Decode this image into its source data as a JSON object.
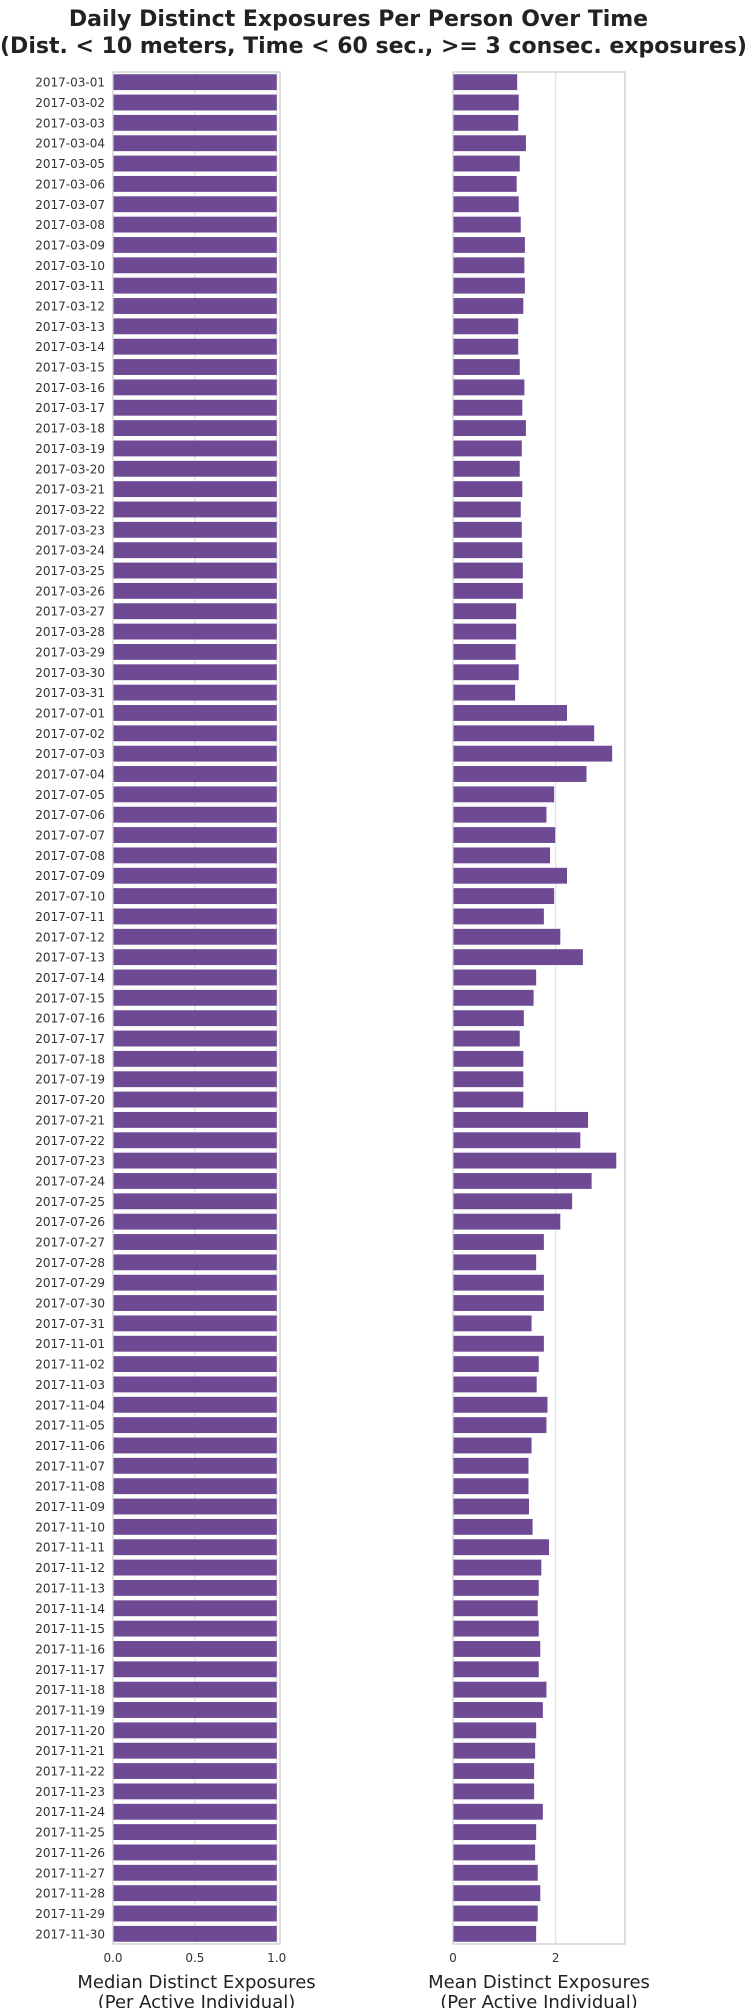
{
  "title": {
    "line1": "Daily Distinct Exposures Per Person Over Time",
    "line2": "(Dist. < 10 meters, Time < 60 sec., >= 3 consec. exposures)"
  },
  "colors": {
    "bar": "#6f4a94",
    "grid": "#dcdcdc",
    "frame": "#c8c8c8"
  },
  "chart_data": [
    {
      "type": "bar",
      "orientation": "horizontal",
      "xlabel_line1": "Median Distinct Exposures",
      "xlabel_line2": "(Per Active Individual)",
      "xlim": [
        0,
        1.02
      ],
      "xticks": [
        0,
        0.5,
        1
      ],
      "xtick_labels": [
        "0.0",
        "0.5",
        "1.0"
      ],
      "grid": true,
      "categories": [
        "2017-03-01",
        "2017-03-02",
        "2017-03-03",
        "2017-03-04",
        "2017-03-05",
        "2017-03-06",
        "2017-03-07",
        "2017-03-08",
        "2017-03-09",
        "2017-03-10",
        "2017-03-11",
        "2017-03-12",
        "2017-03-13",
        "2017-03-14",
        "2017-03-15",
        "2017-03-16",
        "2017-03-17",
        "2017-03-18",
        "2017-03-19",
        "2017-03-20",
        "2017-03-21",
        "2017-03-22",
        "2017-03-23",
        "2017-03-24",
        "2017-03-25",
        "2017-03-26",
        "2017-03-27",
        "2017-03-28",
        "2017-03-29",
        "2017-03-30",
        "2017-03-31",
        "2017-07-01",
        "2017-07-02",
        "2017-07-03",
        "2017-07-04",
        "2017-07-05",
        "2017-07-06",
        "2017-07-07",
        "2017-07-08",
        "2017-07-09",
        "2017-07-10",
        "2017-07-11",
        "2017-07-12",
        "2017-07-13",
        "2017-07-14",
        "2017-07-15",
        "2017-07-16",
        "2017-07-17",
        "2017-07-18",
        "2017-07-19",
        "2017-07-20",
        "2017-07-21",
        "2017-07-22",
        "2017-07-23",
        "2017-07-24",
        "2017-07-25",
        "2017-07-26",
        "2017-07-27",
        "2017-07-28",
        "2017-07-29",
        "2017-07-30",
        "2017-07-31",
        "2017-11-01",
        "2017-11-02",
        "2017-11-03",
        "2017-11-04",
        "2017-11-05",
        "2017-11-06",
        "2017-11-07",
        "2017-11-08",
        "2017-11-09",
        "2017-11-10",
        "2017-11-11",
        "2017-11-12",
        "2017-11-13",
        "2017-11-14",
        "2017-11-15",
        "2017-11-16",
        "2017-11-17",
        "2017-11-18",
        "2017-11-19",
        "2017-11-20",
        "2017-11-21",
        "2017-11-22",
        "2017-11-23",
        "2017-11-24",
        "2017-11-25",
        "2017-11-26",
        "2017-11-27",
        "2017-11-28",
        "2017-11-29",
        "2017-11-30"
      ],
      "values": [
        1,
        1,
        1,
        1,
        1,
        1,
        1,
        1,
        1,
        1,
        1,
        1,
        1,
        1,
        1,
        1,
        1,
        1,
        1,
        1,
        1,
        1,
        1,
        1,
        1,
        1,
        1,
        1,
        1,
        1,
        1,
        1,
        1,
        1,
        1,
        1,
        1,
        1,
        1,
        1,
        1,
        1,
        1,
        1,
        1,
        1,
        1,
        1,
        1,
        1,
        1,
        1,
        1,
        1,
        1,
        1,
        1,
        1,
        1,
        1,
        1,
        1,
        1,
        1,
        1,
        1,
        1,
        1,
        1,
        1,
        1,
        1,
        1,
        1,
        1,
        1,
        1,
        1,
        1,
        1,
        1,
        1,
        1,
        1,
        1,
        1,
        1,
        1,
        1,
        1,
        1,
        1
      ]
    },
    {
      "type": "bar",
      "orientation": "horizontal",
      "xlabel_line1": "Mean Distinct Exposures",
      "xlabel_line2": "(Per Active Individual)",
      "xlim": [
        0,
        3.35
      ],
      "xticks": [
        0,
        2
      ],
      "xtick_labels": [
        "0",
        "2"
      ],
      "grid": true,
      "categories": [
        "2017-03-01",
        "2017-03-02",
        "2017-03-03",
        "2017-03-04",
        "2017-03-05",
        "2017-03-06",
        "2017-03-07",
        "2017-03-08",
        "2017-03-09",
        "2017-03-10",
        "2017-03-11",
        "2017-03-12",
        "2017-03-13",
        "2017-03-14",
        "2017-03-15",
        "2017-03-16",
        "2017-03-17",
        "2017-03-18",
        "2017-03-19",
        "2017-03-20",
        "2017-03-21",
        "2017-03-22",
        "2017-03-23",
        "2017-03-24",
        "2017-03-25",
        "2017-03-26",
        "2017-03-27",
        "2017-03-28",
        "2017-03-29",
        "2017-03-30",
        "2017-03-31",
        "2017-07-01",
        "2017-07-02",
        "2017-07-03",
        "2017-07-04",
        "2017-07-05",
        "2017-07-06",
        "2017-07-07",
        "2017-07-08",
        "2017-07-09",
        "2017-07-10",
        "2017-07-11",
        "2017-07-12",
        "2017-07-13",
        "2017-07-14",
        "2017-07-15",
        "2017-07-16",
        "2017-07-17",
        "2017-07-18",
        "2017-07-19",
        "2017-07-20",
        "2017-07-21",
        "2017-07-22",
        "2017-07-23",
        "2017-07-24",
        "2017-07-25",
        "2017-07-26",
        "2017-07-27",
        "2017-07-28",
        "2017-07-29",
        "2017-07-30",
        "2017-07-31",
        "2017-11-01",
        "2017-11-02",
        "2017-11-03",
        "2017-11-04",
        "2017-11-05",
        "2017-11-06",
        "2017-11-07",
        "2017-11-08",
        "2017-11-09",
        "2017-11-10",
        "2017-11-11",
        "2017-11-12",
        "2017-11-13",
        "2017-11-14",
        "2017-11-15",
        "2017-11-16",
        "2017-11-17",
        "2017-11-18",
        "2017-11-19",
        "2017-11-20",
        "2017-11-21",
        "2017-11-22",
        "2017-11-23",
        "2017-11-24",
        "2017-11-25",
        "2017-11-26",
        "2017-11-27",
        "2017-11-28",
        "2017-11-29",
        "2017-11-30"
      ],
      "values": [
        1.25,
        1.28,
        1.27,
        1.42,
        1.3,
        1.24,
        1.28,
        1.32,
        1.4,
        1.39,
        1.4,
        1.37,
        1.27,
        1.27,
        1.3,
        1.39,
        1.35,
        1.42,
        1.34,
        1.3,
        1.35,
        1.32,
        1.34,
        1.35,
        1.36,
        1.36,
        1.23,
        1.23,
        1.22,
        1.28,
        1.21,
        2.22,
        2.75,
        3.1,
        2.6,
        1.97,
        1.82,
        1.99,
        1.89,
        2.22,
        1.97,
        1.77,
        2.09,
        2.53,
        1.62,
        1.57,
        1.38,
        1.3,
        1.37,
        1.37,
        1.37,
        2.63,
        2.48,
        3.18,
        2.7,
        2.32,
        2.09,
        1.77,
        1.62,
        1.77,
        1.77,
        1.53,
        1.77,
        1.67,
        1.63,
        1.84,
        1.82,
        1.53,
        1.47,
        1.47,
        1.48,
        1.55,
        1.87,
        1.72,
        1.67,
        1.65,
        1.67,
        1.7,
        1.67,
        1.82,
        1.75,
        1.62,
        1.6,
        1.58,
        1.58,
        1.75,
        1.62,
        1.6,
        1.65,
        1.7,
        1.65,
        1.62
      ]
    }
  ]
}
